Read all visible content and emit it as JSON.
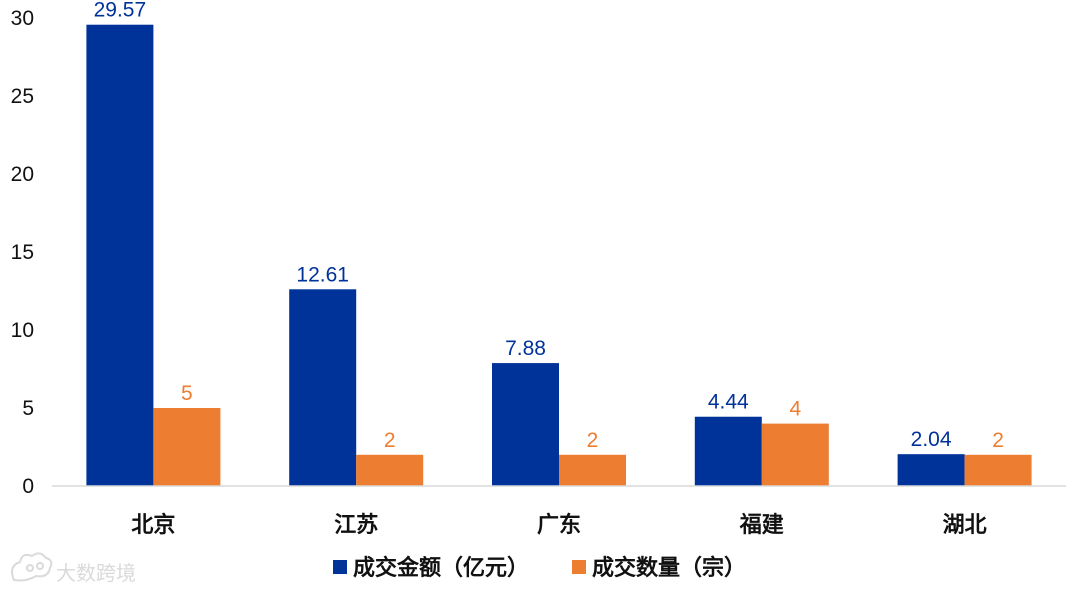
{
  "chart_data": {
    "type": "bar",
    "title": "",
    "xlabel": "",
    "ylabel": "",
    "categories": [
      "北京",
      "江苏",
      "广东",
      "福建",
      "湖北"
    ],
    "series": [
      {
        "name": "成交金额（亿元）",
        "color": "#003399",
        "values": [
          29.57,
          12.61,
          7.88,
          4.44,
          2.04
        ],
        "labels": [
          "29.57",
          "12.61",
          "7.88",
          "4.44",
          "2.04"
        ]
      },
      {
        "name": "成交数量（宗）",
        "color": "#ED7D31",
        "values": [
          5,
          2,
          2,
          4,
          2
        ],
        "labels": [
          "5",
          "2",
          "2",
          "4",
          "2"
        ]
      }
    ],
    "ylim": [
      0,
      30
    ],
    "yticks": [
      0,
      5,
      10,
      15,
      20,
      25,
      30
    ],
    "grid": false,
    "legend_position": "bottom"
  },
  "watermark": {
    "text": "大数跨境",
    "icon": "cloud-logo-icon"
  }
}
